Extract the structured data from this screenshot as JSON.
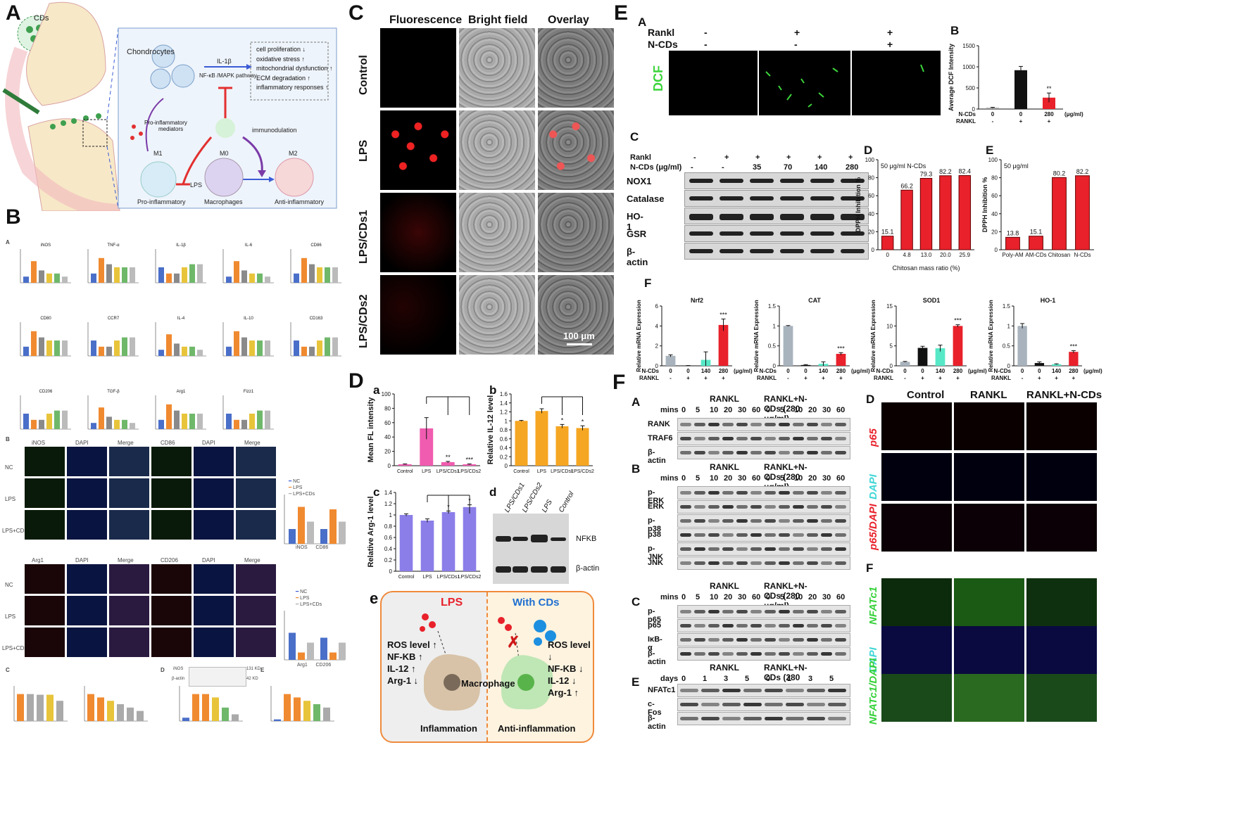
{
  "panel_letters": {
    "A": "A",
    "B": "B",
    "C": "C",
    "D": "D",
    "E": "E",
    "F": "F"
  },
  "panelA": {
    "cds": "CDs",
    "chondrocytes": "Chondrocytes",
    "il1b": "IL-1β",
    "pathway": "NF-κB /MAPK pathway",
    "effects": [
      "cell proliferation ↓",
      "oxidative stress ↑",
      "mitochondrial dysfunction ↑",
      "ECM degradation ↑",
      "inflammatory responses ↑"
    ],
    "pro_mediators_1": "Pro-inflammatory",
    "pro_mediators_2": "mediators",
    "immunodulation": "immunodulation",
    "m1": "M1",
    "m0": "M0",
    "m2": "M2",
    "lps": "LPS",
    "pro_inflammatory": "Pro-inflammatory",
    "macrophages": "Macrophages",
    "anti_inflammatory": "Anti-inflammatory"
  },
  "panelB": {
    "sub_A": "A",
    "sub_B": "B",
    "sub_C": "C",
    "sub_D": "D",
    "sub_E": "E",
    "row1_titles": [
      "iNOS",
      "TNF-α",
      "IL-1β",
      "IL-6",
      "CD86"
    ],
    "row2_titles": [
      "CD80",
      "CCR7",
      "IL-4",
      "IL-10",
      "CD163"
    ],
    "row3_titles": [
      "CD206",
      "TGF-β",
      "Arg1",
      "Fizz1"
    ],
    "if_top_headers": [
      "iNOS",
      "DAPI",
      "Merge",
      "CD86",
      "DAPI",
      "Merge"
    ],
    "if_bot_headers": [
      "Arg1",
      "DAPI",
      "Merge",
      "CD206",
      "DAPI",
      "Merge"
    ],
    "if_rows": [
      "NC",
      "LPS",
      "LPS+CDs"
    ],
    "legend": [
      "NC",
      "LPS",
      "LPS+CDs"
    ],
    "bar_top_x": [
      "iNOS",
      "CD86"
    ],
    "bar_bot_x": [
      "Arg1",
      "CD206"
    ],
    "wb_labels": [
      "iNOS",
      "β-actin"
    ],
    "wb_kd": [
      "131 KD",
      "42 KD"
    ]
  },
  "panelC": {
    "headers": [
      "Fluorescence",
      "Bright field",
      "Overlay"
    ],
    "rows": [
      "Control",
      "LPS",
      "LPS/CDs1",
      "LPS/CDs2"
    ],
    "scale": "100 μm"
  },
  "panelD": {
    "sub_a": "a",
    "sub_b": "b",
    "sub_c": "c",
    "sub_d": "d",
    "sub_e": "e",
    "wb_lanes": [
      "LPS/CDs1",
      "LPS/CDs2",
      "LPS",
      "Control"
    ],
    "wb_labels": [
      "NFKB",
      "β-actin"
    ],
    "schem_lps": "LPS",
    "schem_with": "With CDs",
    "left_list": [
      "ROS level ↑",
      "NF-KB ↑",
      "IL-12 ↑",
      "Arg-1 ↓"
    ],
    "right_list": [
      "ROS level ↓",
      "NF-KB ↓",
      "IL-12 ↓",
      "Arg-1 ↑"
    ],
    "macrophage": "Macrophage",
    "inflammation": "Inflammation",
    "anti_inflammation": "Anti-inflammation"
  },
  "panelE": {
    "sub_A": "A",
    "sub_B": "B",
    "sub_C": "C",
    "sub_D": "D",
    "sub_E": "E",
    "sub_F": "F",
    "rankl": "Rankl",
    "ncds": "N-CDs",
    "dcf": "DCF",
    "dcf_row_rankl": [
      "-",
      "+",
      "+"
    ],
    "dcf_row_ncds": [
      "-",
      "-",
      "+"
    ],
    "wb_rankl_row": [
      "-",
      "+",
      "+",
      "+",
      "+",
      "+"
    ],
    "wb_ncds_label": "N-CDs (μg/ml)",
    "wb_ncds_row": [
      "-",
      "-",
      "35",
      "70",
      "140",
      "280"
    ],
    "wb_labels": [
      "NOX1",
      "Catalase",
      "HO-1",
      "GSR",
      "β-actin"
    ],
    "unit": "(μg/ml)"
  },
  "panelF": {
    "sub_A": "A",
    "sub_B": "B",
    "sub_C": "C",
    "sub_D": "D",
    "sub_E": "E",
    "sub_F": "F",
    "rankl": "RANKL",
    "rankl_ncds": "RANKL+N-CDs (280 μg/ml)",
    "mins": "mins",
    "days": "days",
    "time_mins": [
      "0",
      "5",
      "10",
      "20",
      "30",
      "60",
      "0",
      "5",
      "10",
      "20",
      "30",
      "60"
    ],
    "time_days": [
      "0",
      "1",
      "3",
      "5",
      "0",
      "1",
      "3",
      "5"
    ],
    "blotA": [
      "RANK",
      "TRAF6",
      "β-actin"
    ],
    "blotB": [
      "p-ERK",
      "ERK",
      "p-p38",
      "p38",
      "p-JNK",
      "JNK"
    ],
    "blotC": [
      "p-p65",
      "p65",
      "IκB-α",
      "β-actin"
    ],
    "blotE": [
      "NFATc1",
      "c-Fos",
      "β-actin"
    ],
    "if_headers": [
      "Control",
      "RANKL",
      "RANKL+N-CDs"
    ],
    "if_D_rows": [
      "p65",
      "DAPI",
      "p65/DAPI"
    ],
    "if_F_rows": [
      "NFATc1",
      "DAPI",
      "NFATc1/DAPI"
    ]
  },
  "colors": {
    "red": "#e8212b",
    "green": "#36d13a",
    "blue": "#3b5bd6",
    "pink": "#f05cb0",
    "orange": "#f0a020",
    "purple": "#8b68e0"
  },
  "chart_data": [
    {
      "id": "D-a",
      "type": "bar",
      "categories": [
        "Control",
        "LPS",
        "LPS/CDs1",
        "LPS/CDs2"
      ],
      "values": [
        2,
        52,
        5,
        2
      ],
      "errors": [
        0.5,
        15,
        1,
        0.5
      ],
      "ylabel": "Mean FL intensity",
      "ylim": [
        0,
        100
      ],
      "yticks": [
        0,
        20,
        40,
        60,
        80,
        100
      ],
      "sig": [
        "",
        "",
        "**",
        "***"
      ]
    },
    {
      "id": "D-b",
      "type": "bar",
      "categories": [
        "Control",
        "LPS",
        "LPS/CDs1",
        "LPS/CDs2"
      ],
      "values": [
        1.0,
        1.22,
        0.88,
        0.84
      ],
      "errors": [
        0.01,
        0.05,
        0.04,
        0.05
      ],
      "ylabel": "Relative IL-12 level",
      "ylim": [
        0,
        1.6
      ],
      "yticks": [
        0,
        0.2,
        0.4,
        0.6,
        0.8,
        1.0,
        1.2,
        1.4,
        1.6
      ],
      "sig": [
        "",
        "",
        "*",
        "*"
      ]
    },
    {
      "id": "D-c",
      "type": "bar",
      "categories": [
        "Control",
        "LPS",
        "LPS/CDs1",
        "LPS/CDs2"
      ],
      "values": [
        1.0,
        0.9,
        1.05,
        1.14
      ],
      "errors": [
        0.02,
        0.03,
        0.02,
        0.04
      ],
      "ylabel": "Relative Arg-1 level",
      "ylim": [
        0,
        1.4
      ],
      "yticks": [
        0,
        0.2,
        0.4,
        0.6,
        0.8,
        1.0,
        1.2,
        1.4
      ],
      "sig": [
        "",
        "",
        "*",
        "*"
      ]
    },
    {
      "id": "E-B",
      "type": "bar",
      "categories": [
        "0",
        "0",
        "280"
      ],
      "x_rows": {
        "N-CDs": [
          "0",
          "0",
          "280"
        ],
        "RANKL": [
          "-",
          "+",
          "+"
        ]
      },
      "values": [
        30,
        920,
        270
      ],
      "errors": [
        10,
        90,
        110
      ],
      "ylabel": "Average DCF Intensity",
      "ylim": [
        0,
        1500
      ],
      "yticks": [
        0,
        500,
        1000,
        1500
      ],
      "sig": [
        "",
        "",
        "**"
      ]
    },
    {
      "id": "E-D",
      "type": "bar",
      "title": "50 μg/ml N-CDs",
      "categories": [
        "0",
        "4.8",
        "13.0",
        "20.0",
        "25.9"
      ],
      "values": [
        15.1,
        66.2,
        79.3,
        82.2,
        82.4
      ],
      "xlabel": "Chitosan mass ratio   (%)",
      "ylabel": "DPPH Inhibition %",
      "ylim": [
        0,
        100
      ],
      "yticks": [
        0,
        20,
        40,
        60,
        80,
        100
      ]
    },
    {
      "id": "E-E",
      "type": "bar",
      "title": "50 μg/ml",
      "categories": [
        "Poly-AM",
        "AM-CDs",
        "Chitosan",
        "N-CDs"
      ],
      "values": [
        13.8,
        15.1,
        80.2,
        82.2
      ],
      "ylabel": "DPPH Inhibition %",
      "ylim": [
        0,
        100
      ],
      "yticks": [
        0,
        20,
        40,
        60,
        80,
        100
      ]
    },
    {
      "id": "E-F-Nrf2",
      "type": "bar",
      "title": "Nrf2",
      "categories": [
        "0",
        "0",
        "140",
        "280"
      ],
      "x_rows": {
        "N-CDs": [
          "0",
          "0",
          "140",
          "280"
        ],
        "RANKL": [
          "-",
          "+",
          "+",
          "+"
        ]
      },
      "values": [
        1.0,
        0.02,
        0.6,
        4.1
      ],
      "errors": [
        0.1,
        0.01,
        0.8,
        0.6
      ],
      "ylabel": "Relative mRNA Expression",
      "ylim": [
        0,
        6
      ],
      "yticks": [
        0,
        2,
        4,
        6
      ],
      "sig": [
        "",
        "",
        "",
        "***"
      ]
    },
    {
      "id": "E-F-CAT",
      "type": "bar",
      "title": "CAT",
      "categories": [
        "0",
        "0",
        "140",
        "280"
      ],
      "x_rows": {
        "N-CDs": [
          "0",
          "0",
          "140",
          "280"
        ],
        "RANKL": [
          "-",
          "+",
          "+",
          "+"
        ]
      },
      "values": [
        1.0,
        0.02,
        0.05,
        0.3
      ],
      "errors": [
        0.01,
        0.01,
        0.05,
        0.03
      ],
      "ylabel": "Relative mRNA Expression",
      "ylim": [
        0,
        1.5
      ],
      "yticks": [
        0,
        0.5,
        1.0,
        1.5
      ],
      "sig": [
        "",
        "",
        "",
        "***"
      ]
    },
    {
      "id": "E-F-SOD1",
      "type": "bar",
      "title": "SOD1",
      "categories": [
        "0",
        "0",
        "140",
        "280"
      ],
      "x_rows": {
        "N-CDs": [
          "0",
          "0",
          "140",
          "280"
        ],
        "RANKL": [
          "-",
          "+",
          "+",
          "+"
        ]
      },
      "values": [
        1.0,
        4.5,
        4.4,
        10.0
      ],
      "errors": [
        0.1,
        0.4,
        0.8,
        0.3
      ],
      "ylabel": "Relative mRNA Expression",
      "ylim": [
        0,
        15
      ],
      "yticks": [
        0,
        5,
        10,
        15
      ],
      "sig": [
        "",
        "",
        "",
        "***"
      ]
    },
    {
      "id": "E-F-HO1",
      "type": "bar",
      "title": "HO-1",
      "categories": [
        "0",
        "0",
        "140",
        "280"
      ],
      "x_rows": {
        "N-CDs": [
          "0",
          "0",
          "140",
          "280"
        ],
        "RANKL": [
          "-",
          "+",
          "+",
          "+"
        ]
      },
      "values": [
        1.0,
        0.07,
        0.04,
        0.35
      ],
      "errors": [
        0.06,
        0.03,
        0.01,
        0.03
      ],
      "ylabel": "Relative mRNA Expression",
      "ylim": [
        0,
        1.5
      ],
      "yticks": [
        0,
        0.5,
        1.0,
        1.5
      ],
      "sig": [
        "",
        "",
        "",
        "***"
      ]
    }
  ]
}
